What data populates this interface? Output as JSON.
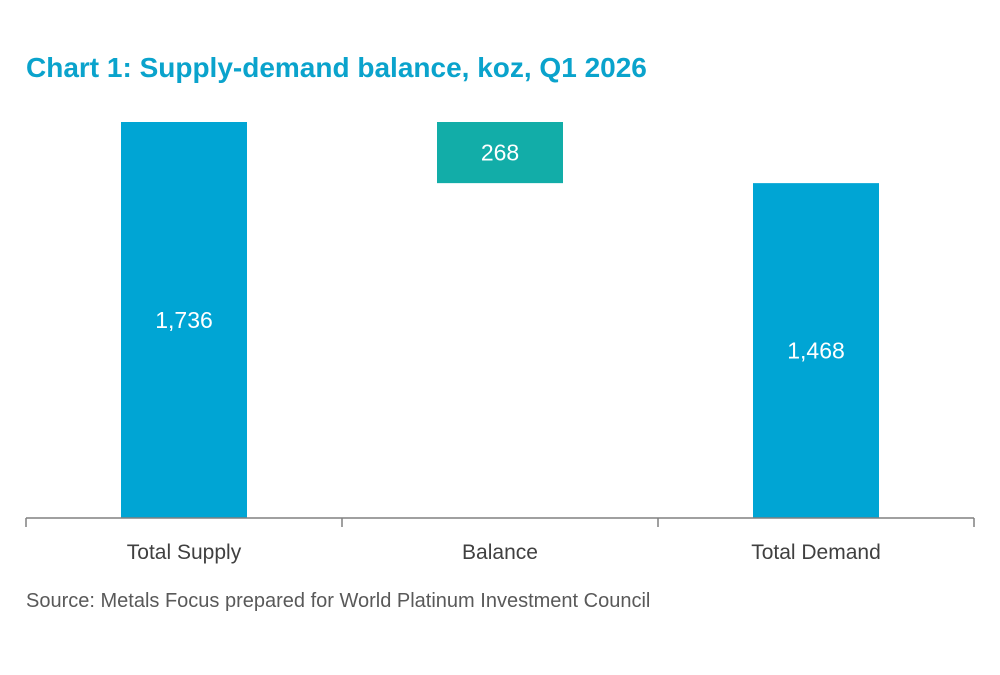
{
  "title": "Chart 1: Supply-demand balance, koz, Q1 2026",
  "source": "Source: Metals Focus prepared for World Platinum Investment Council",
  "colors": {
    "title": "#0aa3cc",
    "supply_demand_bar": "#00a5d4",
    "balance_bar": "#12ada8",
    "axis": "#808080",
    "tick_label": "#404040",
    "data_label": "#ffffff",
    "source": "#595959"
  },
  "chart_data": {
    "type": "bar",
    "subtype": "waterfall",
    "title": "Chart 1: Supply-demand balance, koz, Q1 2026",
    "categories": [
      "Total Supply",
      "Balance",
      "Total Demand"
    ],
    "bars": [
      {
        "category": "Total Supply",
        "start": 0,
        "end": 1736,
        "label": "1,736",
        "color_key": "supply_demand_bar"
      },
      {
        "category": "Balance",
        "start": 1468,
        "end": 1736,
        "label": "268",
        "color_key": "balance_bar"
      },
      {
        "category": "Total Demand",
        "start": 0,
        "end": 1468,
        "label": "1,468",
        "color_key": "supply_demand_bar"
      }
    ],
    "values": [
      1736,
      268,
      1468
    ],
    "ylim": [
      0,
      1736
    ],
    "xlabel": "",
    "ylabel": "",
    "grid": false,
    "legend": "none"
  }
}
